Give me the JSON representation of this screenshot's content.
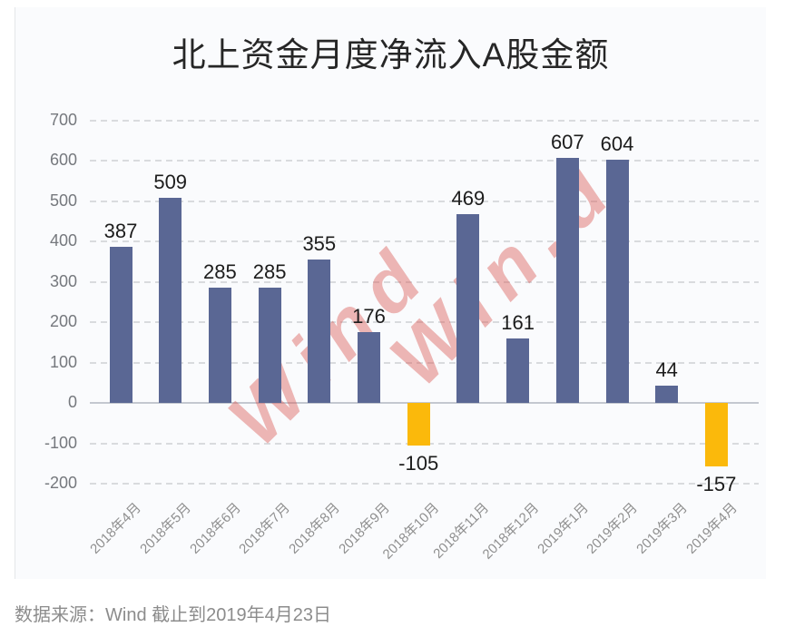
{
  "title": "北上资金月度净流入A股金额",
  "footer": {
    "text": "数据来源：Wind  截止到2019年4月23日"
  },
  "watermark": {
    "instances": [
      "Wind",
      "Win.d"
    ],
    "color": "rgba(217,83,79,0.42)"
  },
  "colors": {
    "positive_bar": "#5A6794",
    "negative_bar": "#FBB90B",
    "grid": "#D9DBDE",
    "zero_axis": "#C4C8D0",
    "tick_text": "#75787D",
    "label_text": "#1C1C1C",
    "panel_bg": "#FAFBFD"
  },
  "chart_data": {
    "type": "bar",
    "title": "北上资金月度净流入A股金额",
    "categories": [
      "2018年4月",
      "2018年5月",
      "2018年6月",
      "2018年7月",
      "2018年8月",
      "2018年9月",
      "2018年10月",
      "2018年11月",
      "2018年12月",
      "2019年1月",
      "2019年2月",
      "2019年3月",
      "2019年4月"
    ],
    "values": [
      387,
      509,
      285,
      285,
      355,
      176,
      -105,
      469,
      161,
      607,
      604,
      44,
      -157
    ],
    "xlabel": "",
    "ylabel": "",
    "ylim": [
      -200,
      700
    ],
    "yticks": [
      700,
      600,
      500,
      400,
      300,
      200,
      100,
      0,
      -100,
      -200
    ],
    "grid": "horizontal-dashed",
    "legend": "none",
    "data_labels": true,
    "positive_color": "#5A6794",
    "negative_color": "#FBB90B"
  }
}
